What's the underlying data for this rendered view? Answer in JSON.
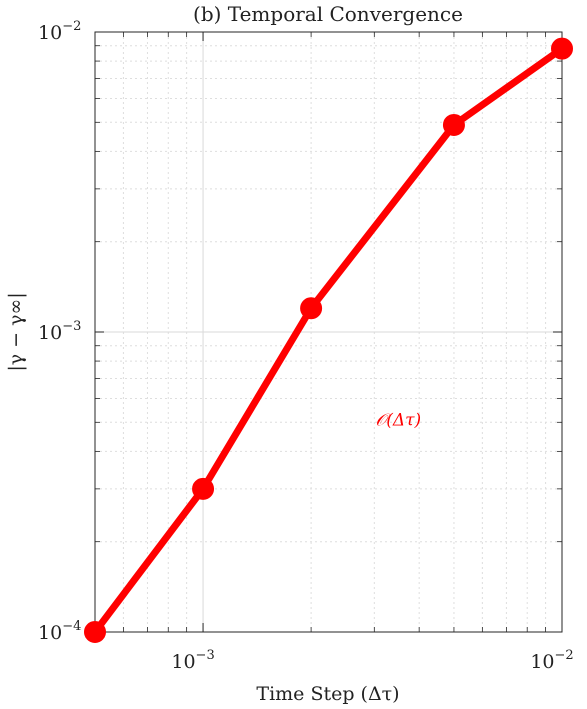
{
  "chart_data": {
    "type": "line",
    "title": "(b) Temporal Convergence",
    "xlabel": "Time Step (Δτ)",
    "ylabel": "|γ − γ∞|",
    "xscale": "log",
    "yscale": "log",
    "xlim": [
      0.0005,
      0.01
    ],
    "ylim": [
      0.0001,
      0.01
    ],
    "grid": true,
    "x_ticks": [
      {
        "value": 0.001,
        "base": "10",
        "exp": "−3"
      },
      {
        "value": 0.01,
        "base": "10",
        "exp": "−2"
      }
    ],
    "y_ticks": [
      {
        "value": 0.0001,
        "base": "10",
        "exp": "−4"
      },
      {
        "value": 0.001,
        "base": "10",
        "exp": "−3"
      },
      {
        "value": 0.01,
        "base": "10",
        "exp": "−2"
      }
    ],
    "series": [
      {
        "color": "#ff0000",
        "x": [
          0.0005,
          0.001,
          0.002,
          0.005,
          0.01
        ],
        "y": [
          0.0001,
          0.0003,
          0.0012,
          0.0049,
          0.0088
        ]
      }
    ],
    "annotation": {
      "text": "𝒪(Δτ)",
      "x": 0.0035,
      "y": 0.00051,
      "color": "#ff0000"
    }
  }
}
